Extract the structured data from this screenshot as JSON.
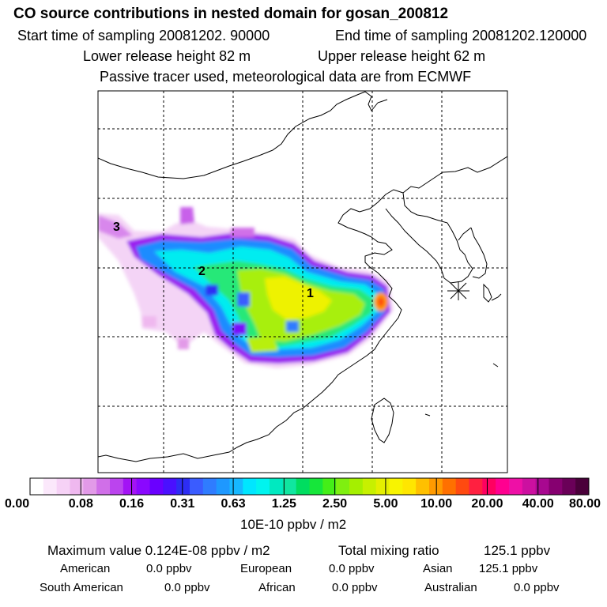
{
  "header": {
    "title": "CO  source contributions in nested domain for gosan_200812",
    "start_label": "Start time of sampling 20081202. 90000",
    "end_label": "End time of sampling 20081202.120000",
    "lower_label": "Lower release height   82 m",
    "upper_label": "Upper release height   62 m",
    "tracer_label": "Passive tracer used, meteorological data are from ECMWF"
  },
  "map": {
    "markers": [
      {
        "label": "1"
      },
      {
        "label": "2"
      },
      {
        "label": "3"
      }
    ],
    "station_symbol": "receptor-star"
  },
  "colorbar": {
    "ticks": [
      "0.00",
      "0.08",
      "0.16",
      "0.31",
      "0.63",
      "1.25",
      "2.50",
      "5.00",
      "10.00",
      "20.00",
      "40.00",
      "80.00"
    ],
    "colors": [
      "#ffffff",
      "#fbe8fb",
      "#f6d2f6",
      "#efb8ef",
      "#e29ae8",
      "#d06fe8",
      "#bb44ee",
      "#a313f5",
      "#8a08ff",
      "#6a00ff",
      "#4a10ff",
      "#2d2df4",
      "#3a5cff",
      "#2f7cff",
      "#1e98ff",
      "#16b8ff",
      "#00e6ff",
      "#00f4ef",
      "#00e9c0",
      "#10e6a0",
      "#00dd60",
      "#16e63a",
      "#44ee18",
      "#7fef10",
      "#a5ef00",
      "#c7f000",
      "#e4ef00",
      "#f8f400",
      "#ffe600",
      "#ffc000",
      "#ff9a00",
      "#ff7000",
      "#ff4a10",
      "#ff2040",
      "#ff0060",
      "#ff0090",
      "#ee10a6",
      "#cc10a0",
      "#a80890",
      "#860070",
      "#6a0058",
      "#4a003a"
    ],
    "unit_label": "10E-10 ppbv / m2"
  },
  "stats": {
    "max_label": "Maximum value  0.124E-08 ppbv / m2",
    "total_label": "Total mixing ratio",
    "total_value": "125.1 ppbv",
    "regions": [
      {
        "name": "American",
        "value": "0.0 ppbv"
      },
      {
        "name": "European",
        "value": "0.0 ppbv"
      },
      {
        "name": "Asian",
        "value": "125.1 ppbv"
      },
      {
        "name": "South American",
        "value": "0.0 ppbv"
      },
      {
        "name": "African",
        "value": "0.0 ppbv"
      },
      {
        "name": "Australian",
        "value": "0.0 ppbv"
      }
    ]
  }
}
